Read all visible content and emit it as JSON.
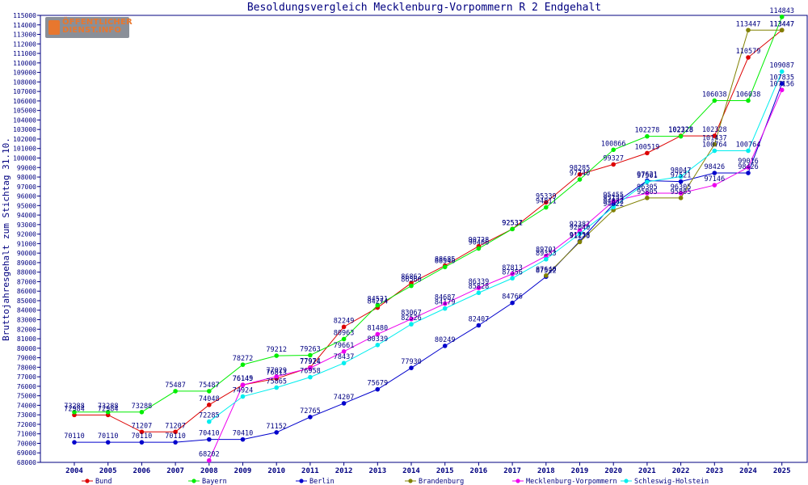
{
  "logo": {
    "line1": "ÖFFENTLICHER",
    "line2": "DIENST.INFO"
  },
  "colors": {
    "axis": "#000080",
    "grid": "#000080"
  },
  "chart_data": {
    "type": "line",
    "title": "Besoldungsvergleich Mecklenburg-Vorpommern R 2 Endgehalt",
    "ylabel": "Bruttojahresgehalt zum Stichtag 31.10.",
    "xlabel": "",
    "x": [
      "2004",
      "2005",
      "2006",
      "2007",
      "2008",
      "2009",
      "2010",
      "2011",
      "2012",
      "2013",
      "2014",
      "2015",
      "2016",
      "2017",
      "2018",
      "2019",
      "2020",
      "2021",
      "2022",
      "2023",
      "2024",
      "2025"
    ],
    "ylim": [
      68000,
      115000
    ],
    "ytick_step": 1000,
    "grid": false,
    "legend_position": "bottom",
    "series": [
      {
        "name": "Bund",
        "color": "#dd0000",
        "values": [
          72984,
          72984,
          71207,
          71207,
          74048,
          76149,
          76813,
          77974,
          82249,
          84274,
          86862,
          88685,
          90728,
          92537,
          95339,
          98285,
          99327,
          100519,
          102328,
          102328,
          110579,
          113447
        ]
      },
      {
        "name": "Bayern",
        "color": "#00ee00",
        "values": [
          73288,
          73288,
          73288,
          75487,
          75487,
          78272,
          79212,
          79263,
          80963,
          84521,
          86560,
          88540,
          90486,
          92531,
          94811,
          97740,
          100866,
          102278,
          102278,
          106038,
          106038,
          114843
        ]
      },
      {
        "name": "Berlin",
        "color": "#0000cc",
        "values": [
          70110,
          70110,
          70110,
          70110,
          70410,
          70410,
          71152,
          72765,
          74207,
          75679,
          77930,
          80249,
          82407,
          84766,
          87522,
          91258,
          95155,
          97621,
          97521,
          98426,
          98426,
          107835
        ]
      },
      {
        "name": "Brandenburg",
        "color": "#808000",
        "values": [
          null,
          null,
          null,
          null,
          null,
          null,
          null,
          null,
          null,
          null,
          null,
          null,
          null,
          null,
          87640,
          91173,
          94522,
          95805,
          95805,
          101437,
          113447,
          113447
        ]
      },
      {
        "name": "Mecklenburg-Vorpommern",
        "color": "#ee00ee",
        "values": [
          null,
          null,
          null,
          null,
          68202,
          76145,
          77029,
          77924,
          79661,
          81480,
          83067,
          84687,
          86339,
          87813,
          89701,
          92382,
          95455,
          96305,
          96305,
          97146,
          99016,
          107156
        ]
      },
      {
        "name": "Schleswig-Holstein",
        "color": "#00eeee",
        "values": [
          null,
          null,
          null,
          null,
          72285,
          74924,
          75865,
          76958,
          78437,
          80339,
          82526,
          84179,
          85828,
          87356,
          89353,
          92040,
          94832,
          97501,
          98047,
          100764,
          100764,
          109087
        ]
      }
    ]
  }
}
